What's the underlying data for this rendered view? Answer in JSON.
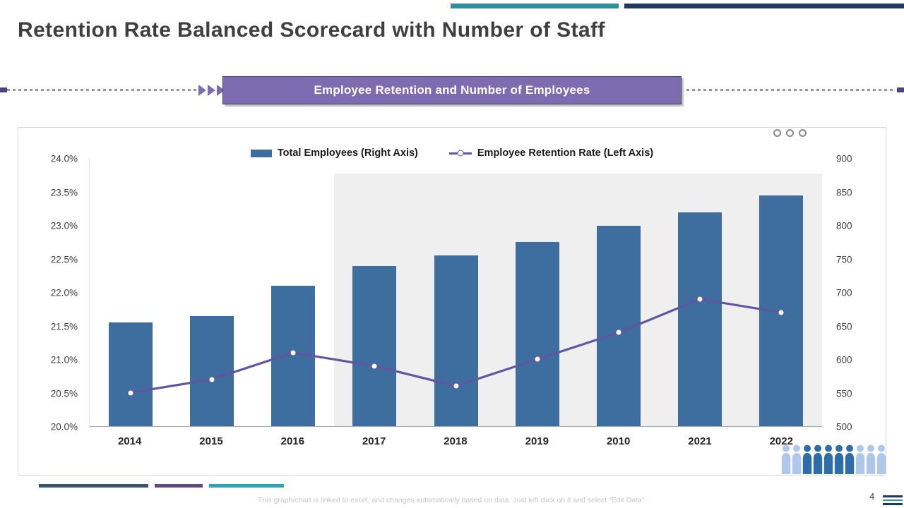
{
  "slide": {
    "title": "Retention Rate Balanced Scorecard with Number of Staff",
    "banner_label": "Employee Retention and Number of Employees",
    "footer_note": "This graph/chart is linked to excel, and changes automatically based on data. Just left click on it and select “Edit Data”.",
    "page_number": "4"
  },
  "chart_data": {
    "type": "bar",
    "subtype": "combo-bar-line",
    "title": "Employee Retention and Number of Employees",
    "categories": [
      "2014",
      "2015",
      "2016",
      "2017",
      "2018",
      "2019",
      "2010",
      "2021",
      "2022"
    ],
    "series": [
      {
        "name": "Total Employees (Right Axis)",
        "type": "bar",
        "axis": "right",
        "values": [
          655,
          665,
          710,
          740,
          755,
          775,
          800,
          820,
          845
        ]
      },
      {
        "name": "Employee Retention Rate (Left Axis)",
        "type": "line",
        "axis": "left",
        "values": [
          20.5,
          20.7,
          21.1,
          20.9,
          20.6,
          21.0,
          21.4,
          21.9,
          21.7
        ]
      }
    ],
    "left_axis": {
      "min": 20.0,
      "max": 24.0,
      "ticks": [
        "24.0%",
        "23.5%",
        "23.0%",
        "22.5%",
        "22.0%",
        "21.5%",
        "21.0%",
        "20.5%",
        "20.0%"
      ]
    },
    "right_axis": {
      "min": 500,
      "max": 900,
      "ticks": [
        "900",
        "850",
        "800",
        "750",
        "700",
        "650",
        "600",
        "550",
        "500"
      ]
    },
    "legend_position": "top-center",
    "grid": false,
    "bar_color": "#3D6E9F",
    "line_color": "#6256A2",
    "marker_fill": "#FFFFFF",
    "shaded_region": {
      "start_index": 3,
      "top_value": 23.78,
      "color": "#EFEFEF"
    }
  },
  "decor": {
    "top_bar_colors": [
      "#2F8EA0",
      "#1F3864"
    ],
    "bottom_bar_colors": [
      "#3D5466",
      "#5F4B7E",
      "#2AA6B8"
    ],
    "corner_line_colors": [
      "#1F3864",
      "#2E95A3",
      "#1F3864"
    ],
    "people_colors": [
      "#AFC7E8",
      "#AFC7E8",
      "#2F6DA8",
      "#2F6DA8",
      "#2F6DA8",
      "#2F6DA8",
      "#2F6DA8",
      "#AFC7E8",
      "#AFC7E8",
      "#AFC7E8"
    ],
    "banner_color": "#7D6CB0",
    "accent_purple": "#7C6CAD",
    "title_color": "#3F3F3F"
  }
}
